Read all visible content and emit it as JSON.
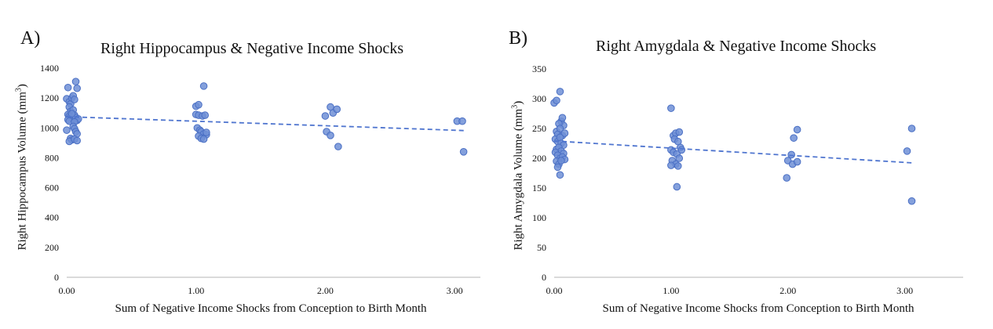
{
  "chart_data": [
    {
      "type": "scatter",
      "panel_label": "A)",
      "title": "Right Hippocampus & Negative Income Shocks",
      "xlabel": "Sum of Negative Income Shocks from Conception to Birth Month",
      "ylabel_main": "Right Hippocampus Volume (mm",
      "ylabel_sup": "3",
      "ylabel_end": ")",
      "xlim": [
        0,
        3.2
      ],
      "ylim": [
        0,
        1400
      ],
      "xticks": [
        "0.00",
        "1.00",
        "2.00",
        "3.00"
      ],
      "xtick_values": [
        0,
        1,
        2,
        3
      ],
      "yticks": [
        "0",
        "200",
        "400",
        "600",
        "800",
        "1000",
        "1200",
        "1400"
      ],
      "ytick_values": [
        0,
        200,
        400,
        600,
        800,
        1000,
        1200,
        1400
      ],
      "grid": false,
      "marker_color": "#6f8fd6",
      "trend_color": "#4f75cf",
      "trendline": {
        "x": [
          0,
          3.08
        ],
        "y": [
          1075,
          982
        ]
      },
      "points": [
        [
          0.0,
          1195
        ],
        [
          0.01,
          1270
        ],
        [
          0.02,
          1175
        ],
        [
          0.03,
          1160
        ],
        [
          0.04,
          1200
        ],
        [
          0.05,
          1215
        ],
        [
          0.06,
          1190
        ],
        [
          0.07,
          1310
        ],
        [
          0.08,
          1265
        ],
        [
          0.02,
          1140
        ],
        [
          0.03,
          1110
        ],
        [
          0.05,
          1120
        ],
        [
          0.01,
          1090
        ],
        [
          0.02,
          1080
        ],
        [
          0.03,
          1075
        ],
        [
          0.04,
          1065
        ],
        [
          0.05,
          1060
        ],
        [
          0.06,
          1085
        ],
        [
          0.07,
          1070
        ],
        [
          0.08,
          1050
        ],
        [
          0.09,
          1060
        ],
        [
          0.01,
          1055
        ],
        [
          0.02,
          1045
        ],
        [
          0.04,
          1095
        ],
        [
          0.06,
          1040
        ],
        [
          0.0,
          985
        ],
        [
          0.05,
          1010
        ],
        [
          0.06,
          995
        ],
        [
          0.07,
          975
        ],
        [
          0.08,
          960
        ],
        [
          0.03,
          930
        ],
        [
          0.04,
          920
        ],
        [
          0.02,
          910
        ],
        [
          0.06,
          925
        ],
        [
          0.08,
          915
        ],
        [
          1.0,
          1145
        ],
        [
          1.02,
          1155
        ],
        [
          1.06,
          1280
        ],
        [
          1.0,
          1090
        ],
        [
          1.02,
          1085
        ],
        [
          1.05,
          1080
        ],
        [
          1.07,
          1085
        ],
        [
          1.01,
          1000
        ],
        [
          1.03,
          985
        ],
        [
          1.04,
          975
        ],
        [
          1.06,
          960
        ],
        [
          1.08,
          955
        ],
        [
          1.02,
          945
        ],
        [
          1.04,
          930
        ],
        [
          1.06,
          925
        ],
        [
          1.08,
          970
        ],
        [
          2.0,
          1080
        ],
        [
          2.04,
          1140
        ],
        [
          2.06,
          1100
        ],
        [
          2.09,
          1125
        ],
        [
          2.01,
          975
        ],
        [
          2.04,
          950
        ],
        [
          2.1,
          875
        ],
        [
          3.02,
          1045
        ],
        [
          3.06,
          1045
        ],
        [
          3.07,
          840
        ]
      ]
    },
    {
      "type": "scatter",
      "panel_label": "B)",
      "title": "Right Amygdala & Negative Income Shocks",
      "xlabel": "Sum of Negative Income Shocks from Conception to Birth Month",
      "ylabel_main": "Right Amygdala Volume (mm",
      "ylabel_sup": "3",
      "ylabel_end": ")",
      "xlim": [
        0,
        3.5
      ],
      "ylim": [
        0,
        350
      ],
      "xticks": [
        "0.00",
        "1.00",
        "2.00",
        "3.00"
      ],
      "xtick_values": [
        0,
        1,
        2,
        3
      ],
      "yticks": [
        "0",
        "50",
        "100",
        "150",
        "200",
        "250",
        "300",
        "350"
      ],
      "ytick_values": [
        0,
        50,
        100,
        150,
        200,
        250,
        300,
        350
      ],
      "grid": false,
      "marker_color": "#6f8fd6",
      "trend_color": "#4f75cf",
      "trendline": {
        "x": [
          0,
          3.08
        ],
        "y": [
          229,
          192
        ]
      },
      "points": [
        [
          0.0,
          293
        ],
        [
          0.02,
          297
        ],
        [
          0.05,
          312
        ],
        [
          0.06,
          262
        ],
        [
          0.07,
          268
        ],
        [
          0.08,
          255
        ],
        [
          0.04,
          258
        ],
        [
          0.02,
          245
        ],
        [
          0.03,
          240
        ],
        [
          0.05,
          250
        ],
        [
          0.07,
          238
        ],
        [
          0.09,
          242
        ],
        [
          0.01,
          232
        ],
        [
          0.03,
          228
        ],
        [
          0.05,
          235
        ],
        [
          0.06,
          225
        ],
        [
          0.08,
          222
        ],
        [
          0.02,
          215
        ],
        [
          0.04,
          218
        ],
        [
          0.06,
          212
        ],
        [
          0.08,
          208
        ],
        [
          0.01,
          210
        ],
        [
          0.03,
          205
        ],
        [
          0.05,
          200
        ],
        [
          0.07,
          202
        ],
        [
          0.09,
          198
        ],
        [
          0.02,
          195
        ],
        [
          0.04,
          190
        ],
        [
          0.03,
          185
        ],
        [
          0.06,
          196
        ],
        [
          0.05,
          172
        ],
        [
          1.0,
          284
        ],
        [
          1.02,
          238
        ],
        [
          1.04,
          242
        ],
        [
          1.07,
          244
        ],
        [
          1.03,
          232
        ],
        [
          1.06,
          228
        ],
        [
          1.08,
          218
        ],
        [
          1.0,
          214
        ],
        [
          1.02,
          210
        ],
        [
          1.05,
          207
        ],
        [
          1.07,
          200
        ],
        [
          1.01,
          196
        ],
        [
          1.04,
          190
        ],
        [
          1.0,
          188
        ],
        [
          1.06,
          187
        ],
        [
          1.09,
          214
        ],
        [
          1.05,
          152
        ],
        [
          2.0,
          196
        ],
        [
          2.03,
          206
        ],
        [
          2.05,
          234
        ],
        [
          2.08,
          248
        ],
        [
          2.04,
          190
        ],
        [
          2.08,
          194
        ],
        [
          1.99,
          167
        ],
        [
          3.02,
          212
        ],
        [
          3.06,
          250
        ],
        [
          3.06,
          128
        ]
      ]
    }
  ]
}
